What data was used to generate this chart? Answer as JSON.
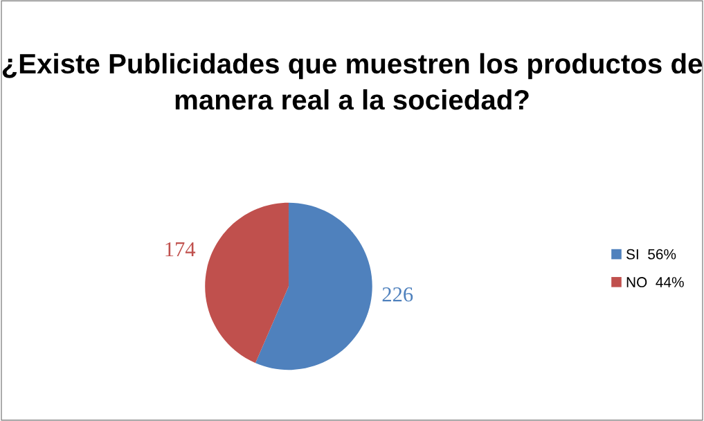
{
  "chart_data": {
    "type": "pie",
    "title": "¿Existe Publicidades que muestren los productos de manera real a la sociedad?",
    "categories": [
      "SI  56%",
      "NO  44%"
    ],
    "values": [
      226,
      174
    ],
    "colors": [
      "#4f81bd",
      "#c0504d"
    ],
    "data_labels": true,
    "legend": "right"
  }
}
